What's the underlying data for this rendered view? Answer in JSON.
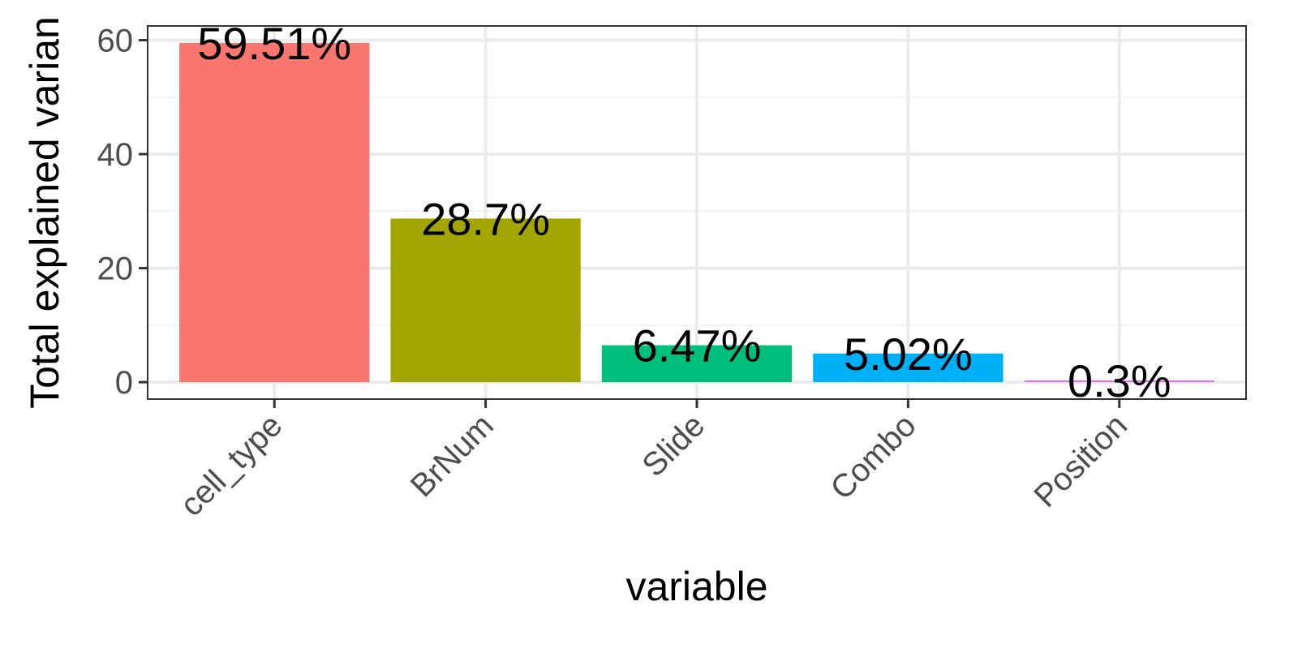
{
  "chart_data": {
    "type": "bar",
    "categories": [
      "cell_type",
      "BrNum",
      "Slide",
      "Combo",
      "Position"
    ],
    "values": [
      59.51,
      28.7,
      6.47,
      5.02,
      0.3
    ],
    "labels": [
      "59.51%",
      "28.7%",
      "6.47%",
      "5.02%",
      "0.3%"
    ],
    "colors": [
      "#F8766D",
      "#A3A500",
      "#00BF7D",
      "#00B0F6",
      "#E76BF3"
    ],
    "xlabel": "variable",
    "ylabel": "Total explained varian",
    "ylim": [
      -2.975,
      62.485
    ],
    "yticks": [
      0,
      20,
      40,
      60
    ],
    "ytick_labels": [
      "0",
      "20",
      "40",
      "60"
    ],
    "grid": true,
    "legend": "none"
  }
}
